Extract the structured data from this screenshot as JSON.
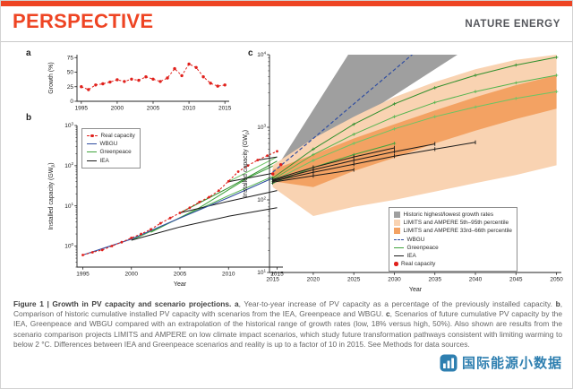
{
  "header": {
    "section": "PERSPECTIVE",
    "journal": "NATURE ENERGY",
    "accent_color": "#ee4423"
  },
  "watermark": {
    "text": "国际能源小数据",
    "color": "#2e7fb0",
    "icon": "bar-chart-logo"
  },
  "caption": {
    "segments": [
      {
        "t": "Figure 1 | Growth in PV capacity and scenario projections. ",
        "b": true
      },
      {
        "t": "a",
        "b": true
      },
      {
        "t": ", Year-to-year increase of PV capacity as a percentage of the previously installed capacity. ",
        "b": false
      },
      {
        "t": "b",
        "b": true
      },
      {
        "t": ", Comparison of historic cumulative installed PV capacity with scenarios from the IEA, Greenpeace and WBGU. ",
        "b": false
      },
      {
        "t": "c",
        "b": true
      },
      {
        "t": ", Scenarios of future cumulative PV capacity by the IEA, Greenpeace and WBGU compared with an extrapolation of the historical range of growth rates (low, 18% versus high, 50%). Also shown are results from the scenario comparison projects LIMITS and AMPERE on low climate impact scenarios, which study future transformation pathways consistent with limiting warming to below 2 °C. Differences between IEA and Greenpeace scenarios and reality is up to a factor of 10 in 2015. See Methods for data sources.",
        "b": false
      }
    ]
  },
  "chart_data": [
    {
      "id": "panel-a",
      "panel_label": "a",
      "type": "line",
      "xlabel": "",
      "ylabel": "Growth (%)",
      "yscale": "linear",
      "xlim": [
        1994.4,
        2015.6
      ],
      "ylim": [
        0,
        80
      ],
      "x_ticks": [
        1995,
        2000,
        2005,
        2010,
        2015
      ],
      "y_ticks": [
        0,
        25,
        50,
        75
      ],
      "series": [
        {
          "name": "Real capacity growth rate",
          "color": "#e0201b",
          "width": 1,
          "dash": "2.5,2",
          "marker": "circle",
          "msize": 1.7,
          "x": [
            1995,
            1996,
            1997,
            1998,
            1999,
            2000,
            2001,
            2002,
            2003,
            2004,
            2005,
            2006,
            2007,
            2008,
            2009,
            2010,
            2011,
            2012,
            2013,
            2014,
            2015
          ],
          "y": [
            25,
            20,
            28,
            30,
            33,
            37,
            34,
            38,
            36,
            42,
            38,
            34,
            40,
            56,
            44,
            64,
            58,
            42,
            31,
            26,
            28
          ]
        }
      ]
    },
    {
      "id": "panel-b",
      "panel_label": "b",
      "type": "line",
      "xlabel": "Year",
      "ylabel": "Installed capacity (GW_p)",
      "yscale": "log",
      "xlim": [
        1994.4,
        2015.6
      ],
      "ylim": [
        0.3,
        1000
      ],
      "x_ticks": [
        1995,
        2000,
        2005,
        2010,
        2015
      ],
      "y_ticks": [
        {
          "v": 1,
          "exp": "0"
        },
        {
          "v": 10,
          "exp": "1"
        },
        {
          "v": 100,
          "exp": "2"
        },
        {
          "v": 1000,
          "exp": "3"
        }
      ],
      "legend": {
        "items": [
          {
            "label": "Real capacity",
            "kind": "dotdash",
            "color": "#e0201b"
          },
          {
            "label": "WBGU",
            "kind": "line",
            "color": "#2f4da0"
          },
          {
            "label": "Greenpeace",
            "kind": "line",
            "color": "#3fa33c"
          },
          {
            "label": "IEA",
            "kind": "line",
            "color": "#1a1a1a"
          }
        ]
      },
      "series": [
        {
          "name": "Greenpeace 2000 scenario",
          "color": "#53b44e",
          "width": 1,
          "x": [
            2000,
            2005,
            2010,
            2015
          ],
          "y": [
            1.4,
            5,
            18,
            60
          ]
        },
        {
          "name": "Greenpeace 2005 scenario",
          "color": "#2f8f2c",
          "width": 1,
          "x": [
            2005,
            2010,
            2015
          ],
          "y": [
            6.7,
            28,
            130
          ]
        },
        {
          "name": "Greenpeace 2010 scenario",
          "color": "#6cc564",
          "width": 1,
          "x": [
            2010,
            2015
          ],
          "y": [
            40,
            165
          ]
        },
        {
          "name": "Greenpeace 2002 scenario",
          "color": "#3fa33c",
          "width": 1,
          "x": [
            2002,
            2007,
            2012,
            2015
          ],
          "y": [
            2.2,
            9,
            50,
            110
          ]
        },
        {
          "name": "IEA 2000 scenario",
          "color": "#1a1a1a",
          "width": 1,
          "x": [
            2000,
            2005,
            2010,
            2015
          ],
          "y": [
            1.4,
            3,
            5.5,
            9
          ]
        },
        {
          "name": "IEA 2005 scenario",
          "color": "#1a1a1a",
          "width": 1,
          "x": [
            2005,
            2010,
            2015
          ],
          "y": [
            6.7,
            13,
            24
          ]
        },
        {
          "name": "IEA 2010 scenario",
          "color": "#1a1a1a",
          "width": 1,
          "x": [
            2010,
            2015
          ],
          "y": [
            40,
            68
          ]
        },
        {
          "name": "IEA 2013 scenario",
          "color": "#1a1a1a",
          "width": 1,
          "x": [
            2013,
            2015
          ],
          "y": [
            138,
            165
          ]
        },
        {
          "name": "WBGU",
          "color": "#2f4da0",
          "width": 1.1,
          "x": [
            1995,
            2000,
            2005,
            2010,
            2015
          ],
          "y": [
            0.6,
            1.5,
            5,
            16,
            55
          ]
        },
        {
          "name": "Real capacity",
          "color": "#e0201b",
          "width": 1.1,
          "dash": "2.5,2",
          "marker": "circle",
          "msize": 1.4,
          "x": [
            1995,
            1996,
            1997,
            1998,
            1999,
            2000,
            2001,
            2002,
            2003,
            2004,
            2005,
            2006,
            2007,
            2008,
            2009,
            2010,
            2011,
            2012,
            2013,
            2014,
            2015
          ],
          "y": [
            0.6,
            0.7,
            0.8,
            1.0,
            1.25,
            1.6,
            2.0,
            2.6,
            3.7,
            5.0,
            6.7,
            9.0,
            12.5,
            16.5,
            24,
            41,
            71,
            101,
            138,
            178,
            228
          ]
        }
      ]
    },
    {
      "id": "panel-c",
      "panel_label": "c",
      "type": "line",
      "xlabel": "Year",
      "ylabel": "Installed capacity (GW_p)",
      "yscale": "log",
      "xlim": [
        2014.6,
        2050.6
      ],
      "ylim": [
        10,
        10000
      ],
      "x_ticks": [
        2015,
        2020,
        2025,
        2030,
        2035,
        2040,
        2045,
        2050
      ],
      "y_ticks": [
        {
          "v": 10,
          "exp": "1"
        },
        {
          "v": 100,
          "exp": "2"
        },
        {
          "v": 1000,
          "exp": "3"
        },
        {
          "v": 10000,
          "exp": "4"
        }
      ],
      "bands": [
        {
          "name": "historic-growth-extrapolation",
          "color": "#9f9f9f",
          "x": [
            2015,
            2020,
            2025,
            2030,
            2035,
            2040,
            2045,
            2050
          ],
          "lower": [
            230,
            526,
            1204,
            2755,
            6305,
            14427,
            33011,
            75536
          ],
          "upper": [
            230,
            1746,
            13261,
            100000,
            760000,
            5800000,
            44000000,
            330000000
          ]
        },
        {
          "name": "limits-ampere-5-95",
          "color": "#f9d3b2",
          "x": [
            2015,
            2020,
            2025,
            2030,
            2035,
            2040,
            2045,
            2050
          ],
          "lower": [
            150,
            60,
            80,
            100,
            130,
            170,
            220,
            300
          ],
          "upper": [
            300,
            700,
            1400,
            2600,
            4200,
            6300,
            8500,
            10000
          ]
        },
        {
          "name": "limits-ampere-33-66",
          "color": "#f3a263",
          "x": [
            2015,
            2020,
            2025,
            2030,
            2035,
            2040,
            2045,
            2050
          ],
          "lower": [
            180,
            150,
            250,
            380,
            600,
            900,
            1300,
            1800
          ],
          "upper": [
            260,
            420,
            700,
            1100,
            1700,
            2600,
            3800,
            5200
          ]
        }
      ],
      "series": [
        {
          "name": "Greenpeace high",
          "color": "#2f8f2c",
          "width": 1,
          "marker": "plus",
          "x": [
            2015,
            2020,
            2025,
            2030,
            2035,
            2040,
            2045,
            2050
          ],
          "y": [
            200,
            500,
            1100,
            2100,
            3500,
            5200,
            7200,
            9200
          ]
        },
        {
          "name": "Greenpeace mid",
          "color": "#53b44e",
          "width": 1,
          "marker": "plus",
          "x": [
            2015,
            2020,
            2025,
            2030,
            2035,
            2040,
            2045,
            2050
          ],
          "y": [
            190,
            420,
            800,
            1400,
            2200,
            3100,
            4100,
            5200
          ]
        },
        {
          "name": "Greenpeace low",
          "color": "#6cc564",
          "width": 1,
          "marker": "plus",
          "x": [
            2015,
            2020,
            2025,
            2030,
            2035,
            2040,
            2045,
            2050
          ],
          "y": [
            180,
            350,
            600,
            950,
            1400,
            1900,
            2500,
            3100
          ]
        },
        {
          "name": "Greenpeace short",
          "color": "#3fa33c",
          "width": 1,
          "marker": "plus",
          "x": [
            2015,
            2020,
            2025,
            2030
          ],
          "y": [
            170,
            280,
            420,
            600
          ]
        },
        {
          "name": "IEA 1",
          "color": "#1a1a1a",
          "width": 1,
          "marker": "tick",
          "x": [
            2015,
            2020,
            2025,
            2030
          ],
          "y": [
            190,
            280,
            390,
            520
          ]
        },
        {
          "name": "IEA 2",
          "color": "#1a1a1a",
          "width": 1,
          "marker": "tick",
          "x": [
            2015,
            2020,
            2025,
            2030,
            2035
          ],
          "y": [
            185,
            260,
            350,
            460,
            590
          ]
        },
        {
          "name": "IEA 3",
          "color": "#1a1a1a",
          "width": 1,
          "marker": "tick",
          "x": [
            2015,
            2020,
            2025,
            2030,
            2035,
            2040
          ],
          "y": [
            180,
            240,
            310,
            400,
            500,
            620
          ]
        },
        {
          "name": "IEA 4",
          "color": "#1a1a1a",
          "width": 1,
          "marker": "tick",
          "x": [
            2015,
            2020,
            2025
          ],
          "y": [
            175,
            215,
            260
          ]
        },
        {
          "name": "WBGU",
          "color": "#2f4da0",
          "width": 1.2,
          "dash": "4,2.5",
          "x": [
            2015,
            2020,
            2025,
            2030,
            2035,
            2040
          ],
          "y": [
            240,
            700,
            2100,
            6200,
            18500,
            55000
          ]
        },
        {
          "name": "Real capacity",
          "color": "#e0201b",
          "line": false,
          "marker": "circle",
          "msize": 1.8,
          "x": [
            2015,
            2016
          ],
          "y": [
            228,
            305
          ]
        }
      ],
      "legend": {
        "items": [
          {
            "label": "Historic highest/lowest growth rates",
            "kind": "box",
            "color": "#9f9f9f"
          },
          {
            "label": "LIMITS and AMPERE 5th–95th percentile",
            "kind": "box",
            "color": "#f9d3b2"
          },
          {
            "label": "LIMITS and AMPERE 33rd–66th percentile",
            "kind": "box",
            "color": "#f3a263"
          },
          {
            "label": "WBGU",
            "kind": "dashline",
            "color": "#2f4da0"
          },
          {
            "label": "Greenpeace",
            "kind": "line",
            "color": "#3fa33c"
          },
          {
            "label": "IEA",
            "kind": "line",
            "color": "#1a1a1a"
          },
          {
            "label": "Real capacity",
            "kind": "dot",
            "color": "#e0201b"
          }
        ]
      }
    }
  ]
}
